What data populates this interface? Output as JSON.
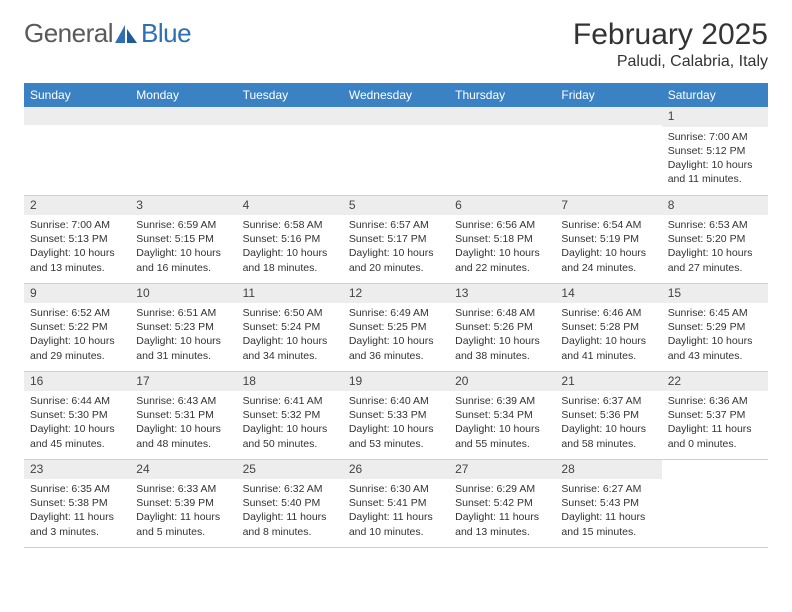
{
  "logo": {
    "first": "General",
    "second": "Blue"
  },
  "title": "February 2025",
  "location": "Paludi, Calabria, Italy",
  "colors": {
    "header_bg": "#3b82c4",
    "header_text": "#ffffff",
    "daynum_bg": "#ededed",
    "text": "#333333",
    "border": "#cfcfcf",
    "logo_blue": "#2e6fb5",
    "logo_gray": "#5a5a5a"
  },
  "weekdays": [
    "Sunday",
    "Monday",
    "Tuesday",
    "Wednesday",
    "Thursday",
    "Friday",
    "Saturday"
  ],
  "weeks": [
    [
      null,
      null,
      null,
      null,
      null,
      null,
      {
        "n": "1",
        "sunrise": "7:00 AM",
        "sunset": "5:12 PM",
        "dh": "10",
        "dm": "11"
      }
    ],
    [
      {
        "n": "2",
        "sunrise": "7:00 AM",
        "sunset": "5:13 PM",
        "dh": "10",
        "dm": "13"
      },
      {
        "n": "3",
        "sunrise": "6:59 AM",
        "sunset": "5:15 PM",
        "dh": "10",
        "dm": "16"
      },
      {
        "n": "4",
        "sunrise": "6:58 AM",
        "sunset": "5:16 PM",
        "dh": "10",
        "dm": "18"
      },
      {
        "n": "5",
        "sunrise": "6:57 AM",
        "sunset": "5:17 PM",
        "dh": "10",
        "dm": "20"
      },
      {
        "n": "6",
        "sunrise": "6:56 AM",
        "sunset": "5:18 PM",
        "dh": "10",
        "dm": "22"
      },
      {
        "n": "7",
        "sunrise": "6:54 AM",
        "sunset": "5:19 PM",
        "dh": "10",
        "dm": "24"
      },
      {
        "n": "8",
        "sunrise": "6:53 AM",
        "sunset": "5:20 PM",
        "dh": "10",
        "dm": "27"
      }
    ],
    [
      {
        "n": "9",
        "sunrise": "6:52 AM",
        "sunset": "5:22 PM",
        "dh": "10",
        "dm": "29"
      },
      {
        "n": "10",
        "sunrise": "6:51 AM",
        "sunset": "5:23 PM",
        "dh": "10",
        "dm": "31"
      },
      {
        "n": "11",
        "sunrise": "6:50 AM",
        "sunset": "5:24 PM",
        "dh": "10",
        "dm": "34"
      },
      {
        "n": "12",
        "sunrise": "6:49 AM",
        "sunset": "5:25 PM",
        "dh": "10",
        "dm": "36"
      },
      {
        "n": "13",
        "sunrise": "6:48 AM",
        "sunset": "5:26 PM",
        "dh": "10",
        "dm": "38"
      },
      {
        "n": "14",
        "sunrise": "6:46 AM",
        "sunset": "5:28 PM",
        "dh": "10",
        "dm": "41"
      },
      {
        "n": "15",
        "sunrise": "6:45 AM",
        "sunset": "5:29 PM",
        "dh": "10",
        "dm": "43"
      }
    ],
    [
      {
        "n": "16",
        "sunrise": "6:44 AM",
        "sunset": "5:30 PM",
        "dh": "10",
        "dm": "45"
      },
      {
        "n": "17",
        "sunrise": "6:43 AM",
        "sunset": "5:31 PM",
        "dh": "10",
        "dm": "48"
      },
      {
        "n": "18",
        "sunrise": "6:41 AM",
        "sunset": "5:32 PM",
        "dh": "10",
        "dm": "50"
      },
      {
        "n": "19",
        "sunrise": "6:40 AM",
        "sunset": "5:33 PM",
        "dh": "10",
        "dm": "53"
      },
      {
        "n": "20",
        "sunrise": "6:39 AM",
        "sunset": "5:34 PM",
        "dh": "10",
        "dm": "55"
      },
      {
        "n": "21",
        "sunrise": "6:37 AM",
        "sunset": "5:36 PM",
        "dh": "10",
        "dm": "58"
      },
      {
        "n": "22",
        "sunrise": "6:36 AM",
        "sunset": "5:37 PM",
        "dh": "11",
        "dm": "0"
      }
    ],
    [
      {
        "n": "23",
        "sunrise": "6:35 AM",
        "sunset": "5:38 PM",
        "dh": "11",
        "dm": "3"
      },
      {
        "n": "24",
        "sunrise": "6:33 AM",
        "sunset": "5:39 PM",
        "dh": "11",
        "dm": "5"
      },
      {
        "n": "25",
        "sunrise": "6:32 AM",
        "sunset": "5:40 PM",
        "dh": "11",
        "dm": "8"
      },
      {
        "n": "26",
        "sunrise": "6:30 AM",
        "sunset": "5:41 PM",
        "dh": "11",
        "dm": "10"
      },
      {
        "n": "27",
        "sunrise": "6:29 AM",
        "sunset": "5:42 PM",
        "dh": "11",
        "dm": "13"
      },
      {
        "n": "28",
        "sunrise": "6:27 AM",
        "sunset": "5:43 PM",
        "dh": "11",
        "dm": "15"
      },
      null
    ]
  ],
  "labels": {
    "sunrise": "Sunrise:",
    "sunset": "Sunset:",
    "daylight_prefix": "Daylight:",
    "hours_word": "hours",
    "and_word": "and",
    "minutes_word": "minutes."
  }
}
